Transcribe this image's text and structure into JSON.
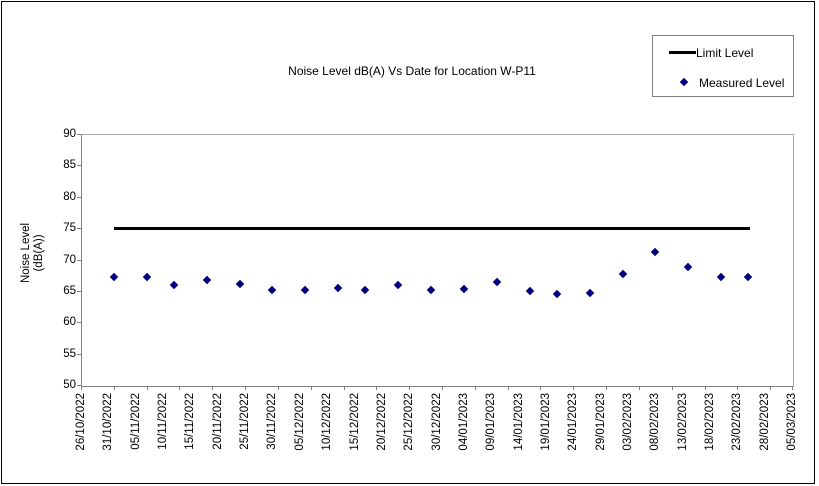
{
  "figure": {
    "title": "Noise Level dB(A) Vs Date for Location W-P11",
    "y_axis_title_lines": [
      "Noise Level",
      "(dB(A))"
    ],
    "legend": [
      {
        "label": "Limit Level",
        "swatch": "line",
        "color": "#000000"
      },
      {
        "label": "Measured Level",
        "swatch": "diamond",
        "color": "#000080"
      }
    ]
  },
  "chart_data": {
    "type": "scatter",
    "title": "Noise Level dB(A) Vs Date for Location W-P11",
    "xlabel": "",
    "ylabel": "Noise Level (dB(A))",
    "ylim": [
      50,
      90
    ],
    "ytick_step": 5,
    "ytick_labels": [
      "90",
      "85",
      "80",
      "75",
      "70",
      "65",
      "60",
      "55",
      "50"
    ],
    "x_tick_labels": [
      "26/10/2022",
      "31/10/2022",
      "05/11/2022",
      "10/11/2022",
      "15/11/2022",
      "20/11/2022",
      "25/11/2022",
      "30/11/2022",
      "05/12/2022",
      "10/12/2022",
      "15/12/2022",
      "20/12/2022",
      "25/12/2022",
      "30/12/2022",
      "04/01/2023",
      "09/01/2023",
      "14/01/2023",
      "19/01/2023",
      "24/01/2023",
      "29/01/2023",
      "03/02/2023",
      "08/02/2023",
      "13/02/2023",
      "18/02/2023",
      "23/02/2023",
      "28/02/2023",
      "05/03/2023"
    ],
    "x_label_step_days": 5,
    "x_tick_mark_step_days": 6,
    "grid": false,
    "legend_position": "top-right",
    "series": [
      {
        "name": "Limit Level",
        "type": "line",
        "color": "#000000",
        "value": 75,
        "start_day": 6,
        "end_day": 122.3
      },
      {
        "name": "Measured Level",
        "type": "scatter",
        "marker": "diamond",
        "color": "#000080",
        "points": [
          {
            "date": "01/11/2022",
            "day": 6,
            "value": 67.2
          },
          {
            "date": "07/11/2022",
            "day": 12,
            "value": 67.2
          },
          {
            "date": "12/11/2022",
            "day": 17,
            "value": 66.0
          },
          {
            "date": "18/11/2022",
            "day": 23,
            "value": 66.7
          },
          {
            "date": "24/11/2022",
            "day": 29,
            "value": 66.2
          },
          {
            "date": "30/11/2022",
            "day": 35,
            "value": 65.2
          },
          {
            "date": "06/12/2022",
            "day": 41,
            "value": 65.2
          },
          {
            "date": "12/12/2022",
            "day": 47,
            "value": 65.5
          },
          {
            "date": "17/12/2022",
            "day": 52,
            "value": 65.2
          },
          {
            "date": "23/12/2022",
            "day": 58,
            "value": 65.9
          },
          {
            "date": "29/12/2022",
            "day": 64,
            "value": 65.1
          },
          {
            "date": "04/01/2023",
            "day": 70,
            "value": 65.4
          },
          {
            "date": "10/01/2023",
            "day": 76,
            "value": 66.4
          },
          {
            "date": "16/01/2023",
            "day": 82,
            "value": 65.0
          },
          {
            "date": "21/01/2023",
            "day": 87,
            "value": 64.6
          },
          {
            "date": "27/01/2023",
            "day": 93,
            "value": 64.7
          },
          {
            "date": "02/02/2023",
            "day": 99,
            "value": 67.7
          },
          {
            "date": "08/02/2023",
            "day": 105,
            "value": 71.2
          },
          {
            "date": "14/02/2023",
            "day": 111,
            "value": 68.9
          },
          {
            "date": "20/02/2023",
            "day": 117,
            "value": 67.3
          },
          {
            "date": "25/02/2023",
            "day": 122,
            "value": 67.3
          }
        ]
      }
    ]
  }
}
